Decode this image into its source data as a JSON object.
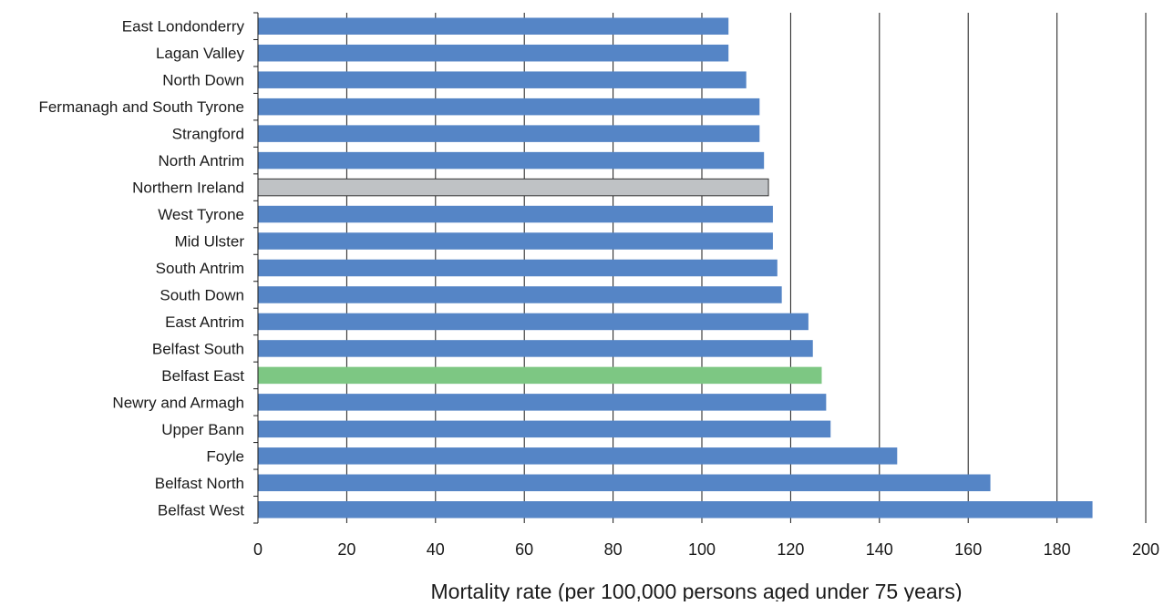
{
  "chart_data": {
    "type": "bar",
    "orientation": "horizontal",
    "title": "",
    "xlabel": "Mortality rate (per 100,000 persons aged under 75 years)",
    "ylabel": "",
    "xlim": [
      0,
      200
    ],
    "xticks": [
      0,
      20,
      40,
      60,
      80,
      100,
      120,
      140,
      160,
      180,
      200
    ],
    "grid": "vertical",
    "legend": "none",
    "categories": [
      "East Londonderry",
      "Lagan Valley",
      "North Down",
      "Fermanagh and South Tyrone",
      "Strangford",
      "North Antrim",
      "Northern Ireland",
      "West Tyrone",
      "Mid Ulster",
      "South Antrim",
      "South Down",
      "East Antrim",
      "Belfast South",
      "Belfast East",
      "Newry and Armagh",
      "Upper Bann",
      "Foyle",
      "Belfast North",
      "Belfast West"
    ],
    "values": [
      106,
      106,
      110,
      113,
      113,
      114,
      115,
      116,
      116,
      117,
      118,
      124,
      125,
      127,
      128,
      129,
      144,
      165,
      188
    ],
    "highlights": {
      "Northern Ireland": "#bfc2c5",
      "Belfast East": "#7dc783"
    }
  },
  "colors": {
    "bar": "#5585c6",
    "gridline": "#1a1a1a",
    "axis": "#1a1a1a",
    "highlight_outline": "#333333"
  }
}
